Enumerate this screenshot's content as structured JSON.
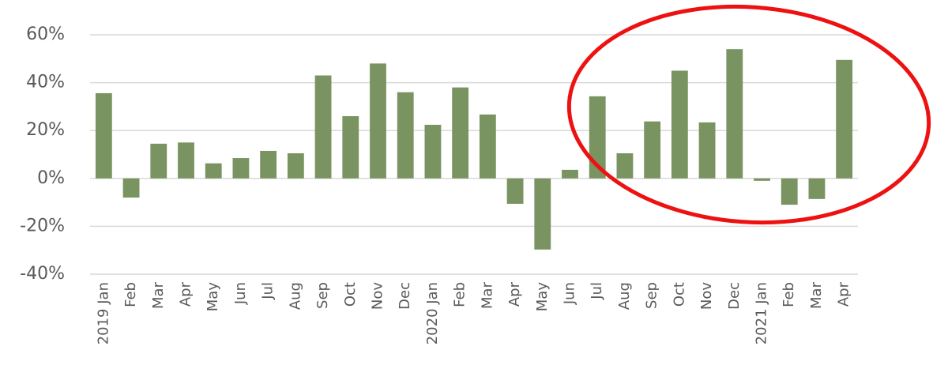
{
  "chart_data": {
    "type": "bar",
    "categories": [
      "2019 Jan",
      "Feb",
      "Mar",
      "Apr",
      "May",
      "Jun",
      "Jul",
      "Aug",
      "Sep",
      "Oct",
      "Nov",
      "Dec",
      "2020 Jan",
      "Feb",
      "Mar",
      "Apr",
      "May",
      "Jun",
      "Jul",
      "Aug",
      "Sep",
      "Oct",
      "Nov",
      "Dec",
      "2021 Jan",
      "Feb",
      "Mar",
      "Apr"
    ],
    "values": [
      35.6,
      -8,
      14.5,
      15,
      6.3,
      8.5,
      11.5,
      10.5,
      43,
      26,
      48,
      36,
      22.4,
      38,
      26.7,
      -10.6,
      -29.7,
      3.6,
      34.3,
      10.5,
      23.8,
      45,
      23.4,
      54,
      -1,
      -11,
      -8.6,
      49.5
    ],
    "color": "#7a9461",
    "ylim": [
      -40,
      60
    ],
    "yticks": [
      {
        "value": -40,
        "label": "-40%"
      },
      {
        "value": -20,
        "label": "-20%"
      },
      {
        "value": 0,
        "label": "0%"
      },
      {
        "value": 20,
        "label": "20%"
      },
      {
        "value": 40,
        "label": "40%"
      },
      {
        "value": 60,
        "label": "60%"
      }
    ],
    "grid": true
  }
}
